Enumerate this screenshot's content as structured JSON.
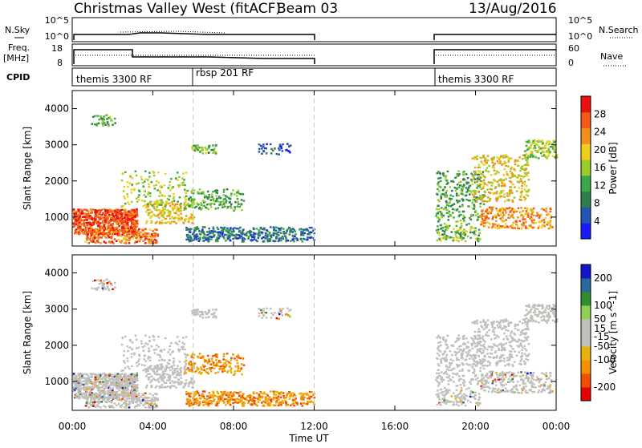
{
  "header": {
    "title": "Christmas Valley West (fitACF)",
    "beam": "Beam 03",
    "date": "13/Aug/2016"
  },
  "colors": {
    "power_scale": [
      "#1a1aff",
      "#2455b4",
      "#2e7d4c",
      "#3aa84a",
      "#9acc2a",
      "#f0cf1c",
      "#f28e1c",
      "#f25a16",
      "#ec1010"
    ],
    "velocity_scale": [
      "#e60000",
      "#f24d00",
      "#f39200",
      "#e8b20a",
      "#bfbfbc",
      "#bfbfbc",
      "#8fcf55",
      "#2f8f2f",
      "#2a6a9a",
      "#1515c8"
    ],
    "ground_scatter": "#bfbfbc"
  },
  "panels": {
    "nsky": {
      "label_left": "N.Sky",
      "label_right": "N.Search",
      "ticks_left": [
        "10^5",
        "10^0"
      ],
      "ticks_right": [
        "10^5",
        "10^0"
      ]
    },
    "freq": {
      "label_left_1": "Freq.",
      "label_left_2": "[MHz]",
      "label_right": "Nave",
      "ticks_left": [
        "18",
        "8"
      ],
      "ticks_right": [
        "60",
        "0"
      ]
    },
    "cpid": {
      "label": "CPID",
      "programs": [
        {
          "name": "themis 3300 RF",
          "start": "00:00"
        },
        {
          "name": "rbsp 201 RF",
          "start": "06:00"
        },
        {
          "name": "themis 3300 RF",
          "start": "18:00"
        }
      ]
    }
  },
  "chart_data": [
    {
      "type": "heatmap",
      "name": "power",
      "ylabel": "Slant Range [km]",
      "yticks": [
        "1000",
        "2000",
        "3000",
        "4000"
      ],
      "ylim": [
        200,
        4500
      ],
      "colorbar_label": "Power [dB]",
      "colorbar_ticks": [
        "4",
        "8",
        "12",
        "16",
        "20",
        "24",
        "28"
      ],
      "colorbar_range": [
        0,
        32
      ]
    },
    {
      "type": "heatmap",
      "name": "velocity",
      "ylabel": "Slant Range [km]",
      "yticks": [
        "1000",
        "2000",
        "3000",
        "4000"
      ],
      "ylim": [
        200,
        4500
      ],
      "colorbar_label": "Velocity [m s^-1]",
      "colorbar_ticks": [
        "-200",
        "-100",
        "-50",
        "-15",
        "15",
        "50",
        "100",
        "200"
      ],
      "colorbar_range": [
        -250,
        250
      ]
    }
  ],
  "xaxis": {
    "label": "Time UT",
    "ticks": [
      "00:00",
      "04:00",
      "08:00",
      "12:00",
      "16:00",
      "20:00",
      "00:00"
    ],
    "range_hours": [
      0,
      24
    ],
    "data_gap_hours": [
      12,
      18
    ],
    "marker_lines_hours": [
      6,
      12
    ]
  }
}
